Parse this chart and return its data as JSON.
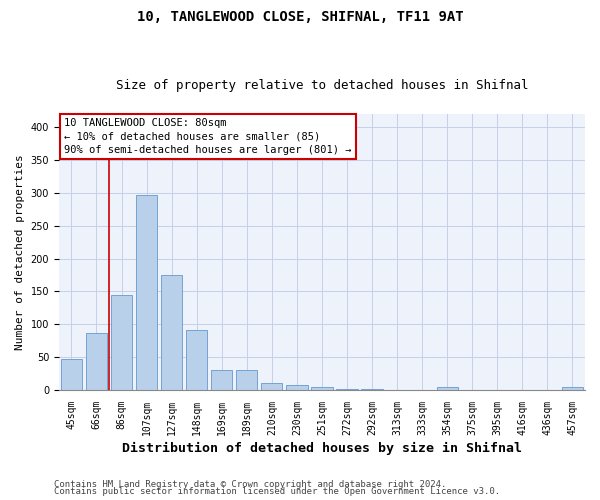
{
  "title1": "10, TANGLEWOOD CLOSE, SHIFNAL, TF11 9AT",
  "title2": "Size of property relative to detached houses in Shifnal",
  "xlabel": "Distribution of detached houses by size in Shifnal",
  "ylabel": "Number of detached properties",
  "categories": [
    "45sqm",
    "66sqm",
    "86sqm",
    "107sqm",
    "127sqm",
    "148sqm",
    "169sqm",
    "189sqm",
    "210sqm",
    "230sqm",
    "251sqm",
    "272sqm",
    "292sqm",
    "313sqm",
    "333sqm",
    "354sqm",
    "375sqm",
    "395sqm",
    "416sqm",
    "436sqm",
    "457sqm"
  ],
  "values": [
    47,
    87,
    144,
    297,
    175,
    92,
    30,
    30,
    10,
    8,
    5,
    2,
    1,
    0,
    0,
    4,
    0,
    0,
    0,
    0,
    4
  ],
  "bar_color": "#b8d0ea",
  "bar_edge_color": "#6699cc",
  "vline_x_index": 1.5,
  "vline_color": "#cc0000",
  "annotation_lines": [
    "10 TANGLEWOOD CLOSE: 80sqm",
    "← 10% of detached houses are smaller (85)",
    "90% of semi-detached houses are larger (801) →"
  ],
  "ylim_max": 420,
  "yticks": [
    0,
    50,
    100,
    150,
    200,
    250,
    300,
    350,
    400
  ],
  "footer1": "Contains HM Land Registry data © Crown copyright and database right 2024.",
  "footer2": "Contains public sector information licensed under the Open Government Licence v3.0.",
  "bg_color": "#eef2fb",
  "grid_color": "#c5cfe8",
  "title1_fontsize": 10,
  "title2_fontsize": 9,
  "xlabel_fontsize": 9.5,
  "ylabel_fontsize": 8,
  "tick_fontsize": 7,
  "ann_fontsize": 7.5,
  "footer_fontsize": 6.5
}
